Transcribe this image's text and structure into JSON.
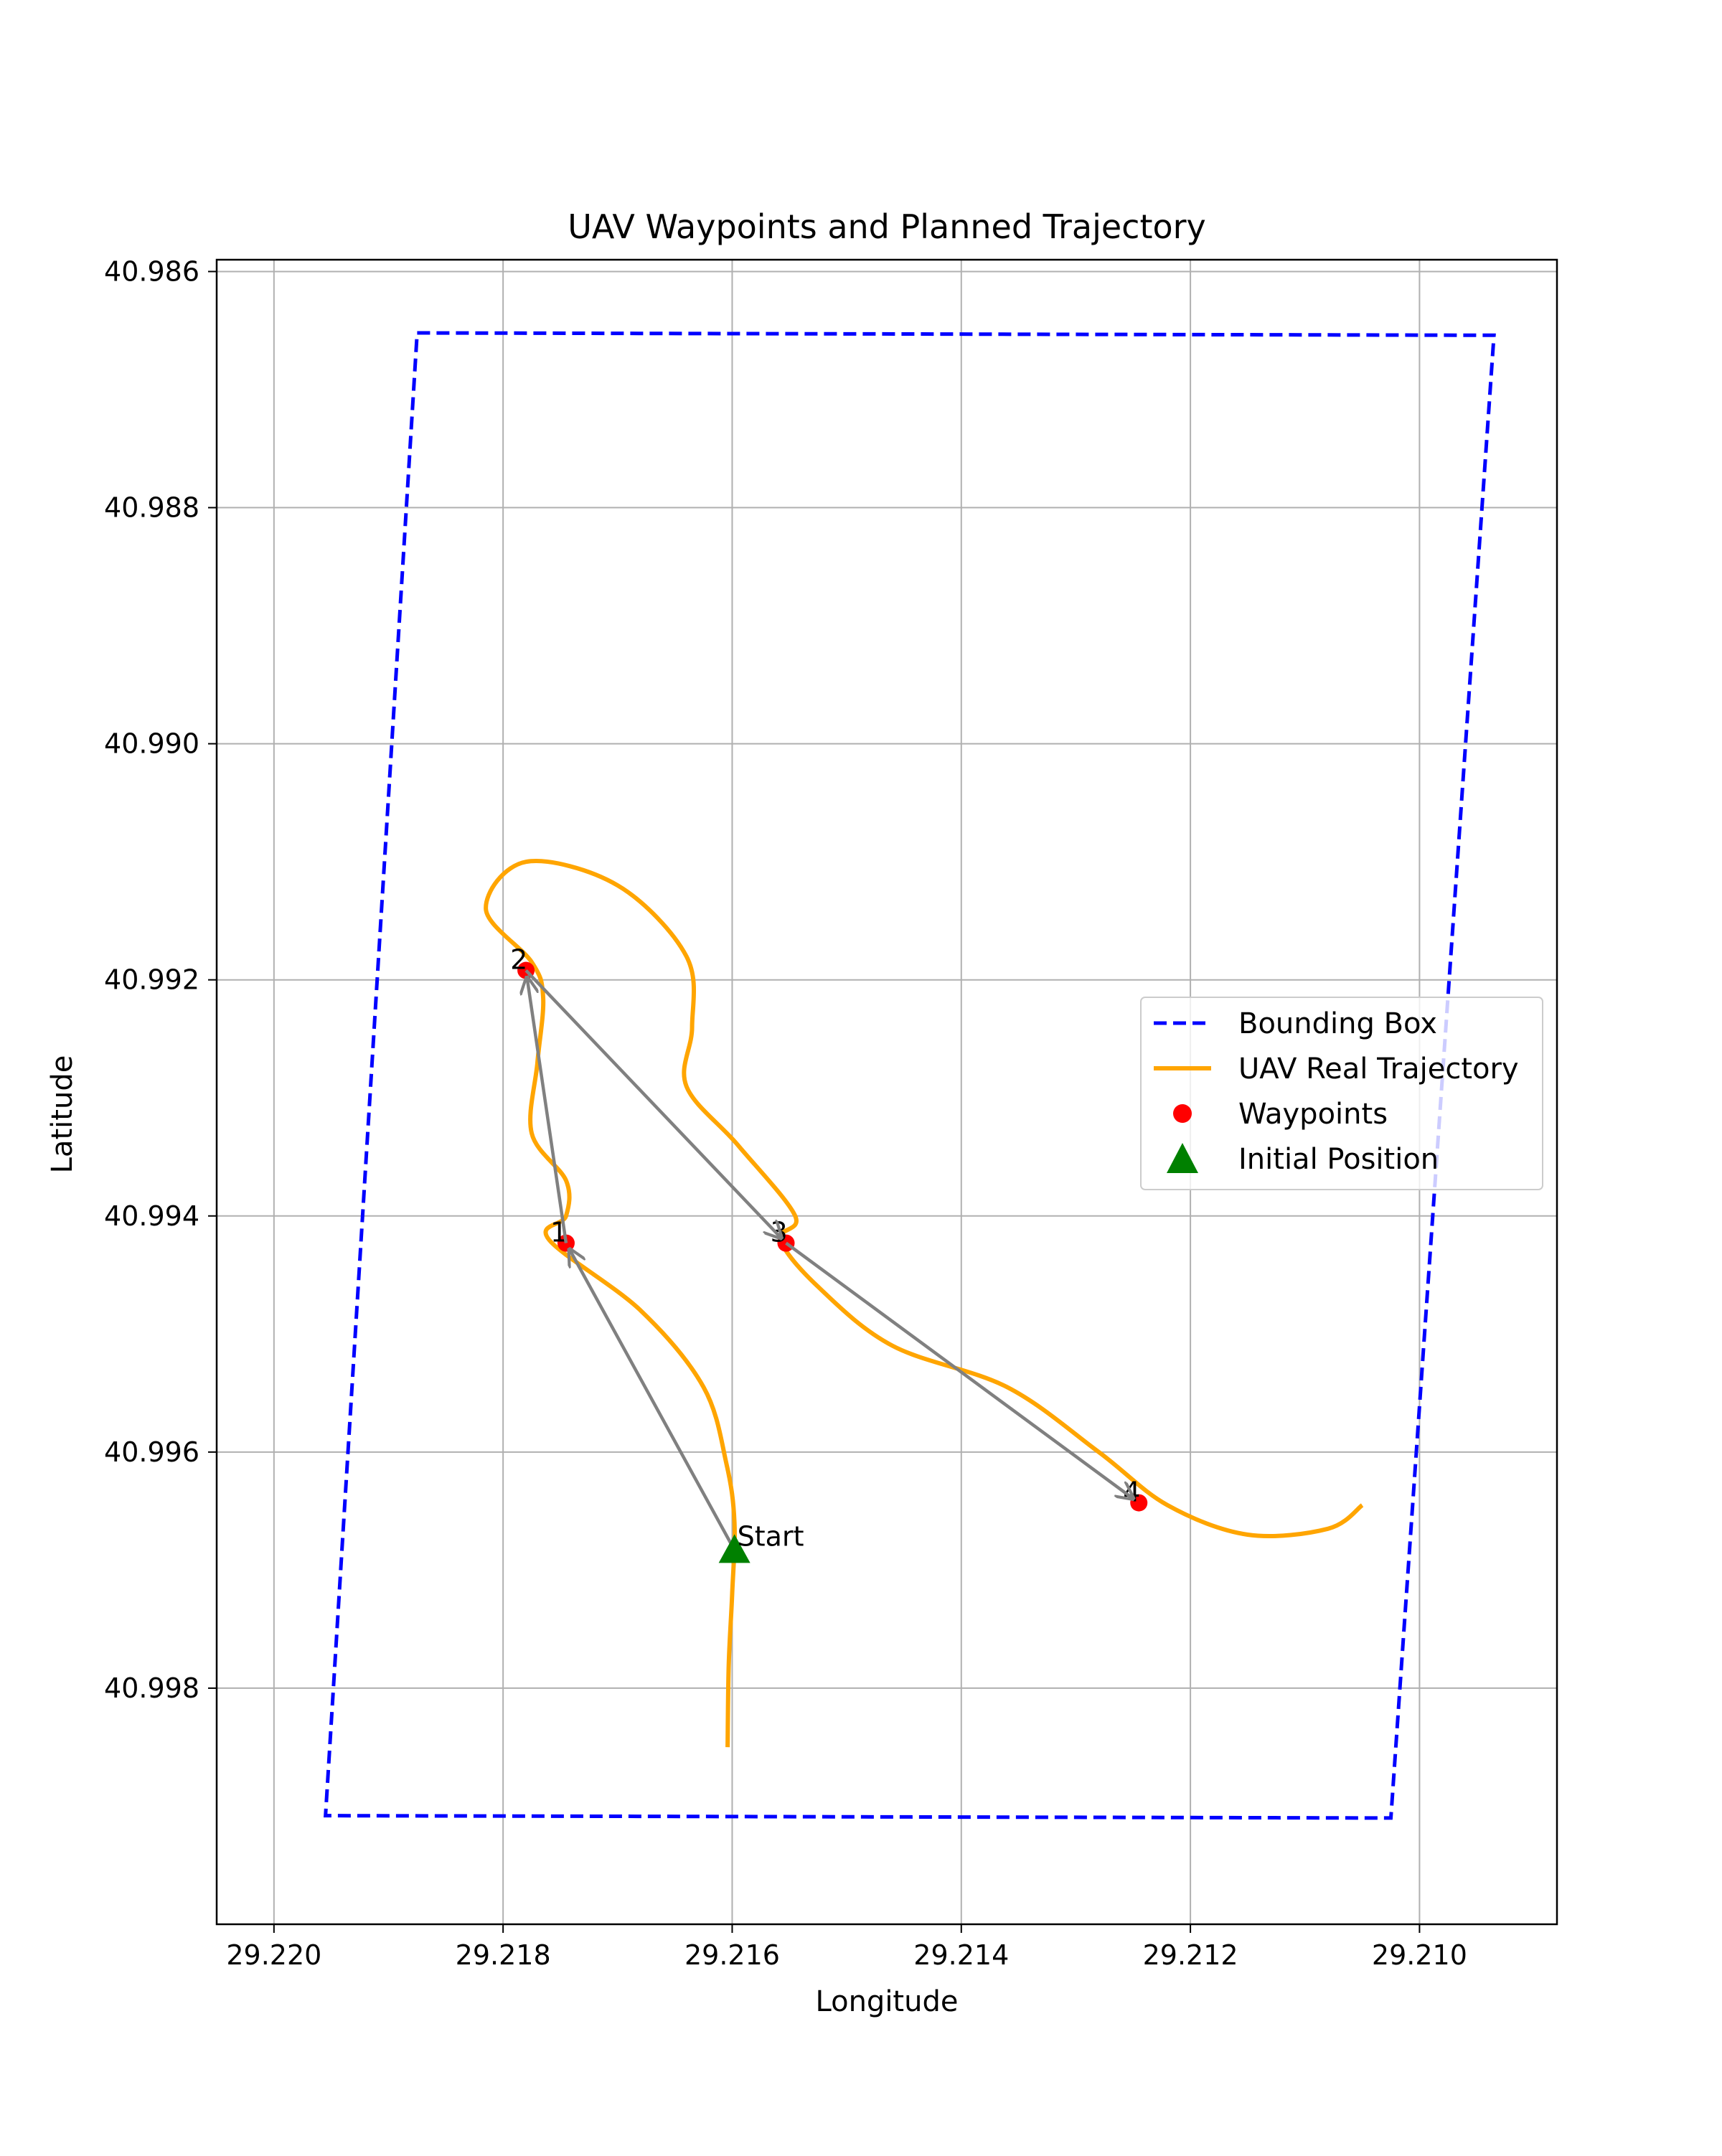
{
  "chart_data": {
    "type": "line",
    "title": "UAV Waypoints and Planned Trajectory",
    "xlabel": "Longitude",
    "ylabel": "Latitude",
    "xlim": [
      29.2205,
      29.2088
    ],
    "ylim": [
      41.0,
      40.9859
    ],
    "x_inverted": true,
    "y_inverted": true,
    "grid": true,
    "x_ticks": [
      "29.220",
      "29.218",
      "29.216",
      "29.214",
      "29.212",
      "29.210"
    ],
    "y_ticks": [
      "40.986",
      "40.988",
      "40.990",
      "40.992",
      "40.994",
      "40.996",
      "40.998"
    ],
    "legend": {
      "position": "center-right",
      "entries": [
        "Bounding Box",
        "UAV Real Trajectory",
        "Waypoints",
        "Initial Position"
      ]
    },
    "series": [
      {
        "name": "Bounding Box",
        "style": "dashed",
        "color": "#0000ff",
        "points": [
          [
            29.21875,
            40.98652
          ],
          [
            29.20935,
            40.98654
          ],
          [
            29.21025,
            40.9991
          ],
          [
            29.21955,
            40.99908
          ],
          [
            29.21875,
            40.98652
          ]
        ]
      },
      {
        "name": "UAV Real Trajectory",
        "style": "solid",
        "color": "#ffa500",
        "points": [
          [
            29.21604,
            40.9985
          ],
          [
            29.21603,
            40.9978
          ],
          [
            29.216,
            40.9972
          ],
          [
            29.21598,
            40.9966
          ],
          [
            29.21605,
            40.9961
          ],
          [
            29.21625,
            40.99545
          ],
          [
            29.2168,
            40.9948
          ],
          [
            29.2176,
            40.9942
          ],
          [
            29.21745,
            40.994
          ],
          [
            29.21745,
            40.9937
          ],
          [
            29.21775,
            40.9933
          ],
          [
            29.2177,
            40.9927
          ],
          [
            29.21765,
            40.99215
          ],
          [
            29.21775,
            40.99185
          ],
          [
            29.21815,
            40.9914
          ],
          [
            29.2178,
            40.991
          ],
          [
            29.217,
            40.9912
          ],
          [
            29.2164,
            40.9918
          ],
          [
            29.21635,
            40.9924
          ],
          [
            29.2164,
            40.9929
          ],
          [
            29.21595,
            40.9934
          ],
          [
            29.21545,
            40.994
          ],
          [
            29.21558,
            40.9942
          ],
          [
            29.21525,
            40.9946
          ],
          [
            29.2146,
            40.9951
          ],
          [
            29.2136,
            40.99545
          ],
          [
            29.2128,
            40.996
          ],
          [
            29.2122,
            40.99645
          ],
          [
            29.2115,
            40.9967
          ],
          [
            29.2108,
            40.99665
          ],
          [
            29.2105,
            40.99645
          ]
        ]
      },
      {
        "name": "Waypoints",
        "style": "scatter",
        "color": "#ff0000",
        "points": [
          [
            29.21745,
            40.99423
          ],
          [
            29.2178,
            40.99192
          ],
          [
            29.21553,
            40.99423
          ],
          [
            29.21245,
            40.99643
          ]
        ],
        "labels": [
          "1",
          "2",
          "3",
          "4"
        ]
      },
      {
        "name": "Initial Position",
        "style": "triangle",
        "color": "#008000",
        "points": [
          [
            29.21598,
            40.99683
          ]
        ],
        "labels": [
          "Start"
        ]
      }
    ],
    "arrows": {
      "color": "#808080",
      "path": [
        [
          29.21598,
          40.99683
        ],
        [
          29.21745,
          40.99423
        ],
        [
          29.2178,
          40.99192
        ],
        [
          29.21553,
          40.99423
        ],
        [
          29.21245,
          40.99643
        ]
      ]
    }
  }
}
